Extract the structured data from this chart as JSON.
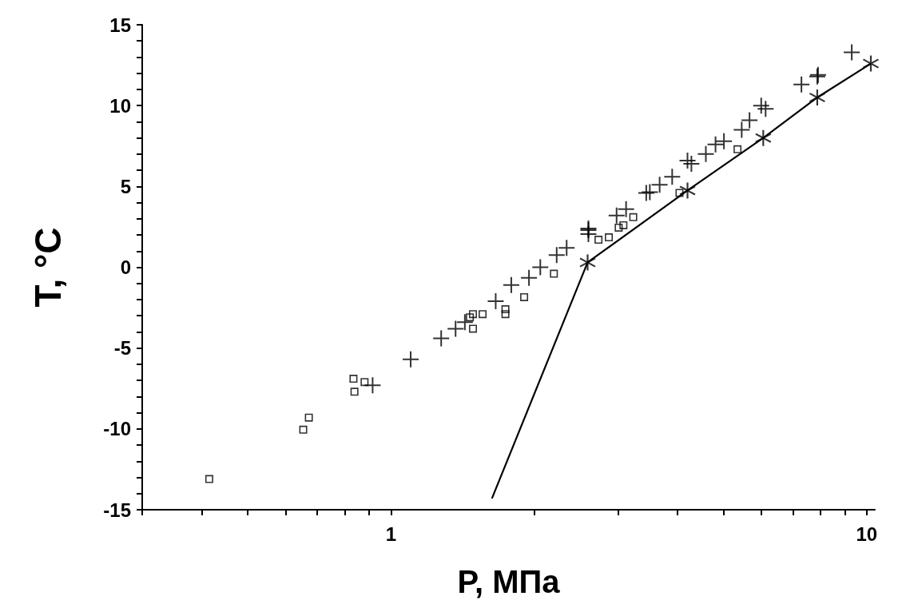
{
  "chart_data": {
    "type": "scatter",
    "xlabel": "P, МПа",
    "ylabel": "T, °C",
    "log": "x",
    "grid": false,
    "xlim": [
      0.3,
      10.4
    ],
    "xticks": [
      {
        "value": 0.3,
        "label": null
      },
      {
        "value": 0.4,
        "label": null
      },
      {
        "value": 0.5,
        "label": null
      },
      {
        "value": 0.6,
        "label": null
      },
      {
        "value": 0.7,
        "label": null
      },
      {
        "value": 0.8,
        "label": null
      },
      {
        "value": 0.9,
        "label": null
      },
      1,
      {
        "value": 2,
        "label": null
      },
      {
        "value": 3,
        "label": null
      },
      {
        "value": 4,
        "label": null
      },
      {
        "value": 5,
        "label": null
      },
      {
        "value": 6,
        "label": null
      },
      {
        "value": 7,
        "label": null
      },
      {
        "value": 8,
        "label": null
      },
      {
        "value": 9,
        "label": null
      },
      10
    ],
    "ylim": [
      -15,
      15
    ],
    "yticks": [
      -15,
      {
        "value": -14,
        "label": null
      },
      {
        "value": -13,
        "label": null
      },
      {
        "value": -12,
        "label": null
      },
      {
        "value": -11,
        "label": null
      },
      -10,
      {
        "value": -9,
        "label": null
      },
      {
        "value": -8,
        "label": null
      },
      {
        "value": -7,
        "label": null
      },
      {
        "value": -6,
        "label": null
      },
      -5,
      {
        "value": -4,
        "label": null
      },
      {
        "value": -3,
        "label": null
      },
      {
        "value": -2,
        "label": null
      },
      {
        "value": -1,
        "label": null
      },
      0,
      {
        "value": 1,
        "label": null
      },
      {
        "value": 2,
        "label": null
      },
      {
        "value": 3,
        "label": null
      },
      {
        "value": 4,
        "label": null
      },
      5,
      {
        "value": 6,
        "label": null
      },
      {
        "value": 7,
        "label": null
      },
      {
        "value": 8,
        "label": null
      },
      {
        "value": 9,
        "label": null
      },
      10,
      {
        "value": 11,
        "label": null
      },
      {
        "value": 12,
        "label": null
      },
      {
        "value": 13,
        "label": null
      },
      {
        "value": 14,
        "label": null
      },
      15
    ],
    "series": [
      {
        "marker": "square",
        "color": "#000000",
        "x": [
          0.415,
          0.654,
          0.672,
          0.834,
          0.838,
          0.88,
          1.465,
          1.487,
          1.487,
          1.558,
          1.74,
          1.74,
          1.905,
          2.2,
          2.73,
          2.87,
          3.01,
          3.08,
          3.23,
          4.04,
          5.35
        ],
        "values": [
          -13.1,
          -10.05,
          -9.3,
          -6.9,
          -7.7,
          -7.1,
          -3.1,
          -2.9,
          -3.8,
          -2.9,
          -2.6,
          -2.9,
          -1.85,
          -0.4,
          1.7,
          1.85,
          2.45,
          2.6,
          3.1,
          4.6,
          7.3
        ]
      },
      {
        "marker": "cross",
        "color": "#000000",
        "x": [
          0.915,
          1.1,
          1.275,
          1.367,
          1.43,
          1.66,
          1.79,
          1.95,
          2.06,
          2.23,
          2.34,
          2.6,
          2.6,
          2.98,
          3.12,
          3.44,
          3.5,
          3.67,
          3.9,
          4.28,
          4.59,
          4.81,
          5.01,
          5.46,
          5.67,
          6.13,
          7.29,
          7.87
        ],
        "values": [
          -7.3,
          -5.7,
          -4.4,
          -3.8,
          -3.4,
          -2.1,
          -1.1,
          -0.65,
          0.0,
          0.75,
          1.2,
          2.05,
          2.4,
          3.2,
          3.6,
          4.6,
          4.65,
          5.1,
          5.6,
          6.4,
          7.0,
          7.6,
          7.8,
          8.5,
          9.1,
          9.8,
          11.3,
          11.8
        ]
      },
      {
        "marker": "cross",
        "color": "#000000",
        "x": [
          2.6,
          4.2,
          6.0,
          7.9,
          9.3
        ],
        "values": [
          2.3,
          6.6,
          10.0,
          11.9,
          13.3
        ]
      },
      {
        "marker": "star",
        "color": "#000000",
        "x": [
          2.59,
          4.2,
          6.06,
          7.87,
          10.2
        ],
        "values": [
          0.3,
          4.75,
          8.0,
          10.5,
          12.6
        ]
      },
      {
        "type": "line",
        "marker": "none",
        "line_style": "solid",
        "color": "#000000",
        "x": [
          1.63,
          2.59,
          4.2,
          6.06,
          7.87,
          10.2
        ],
        "values": [
          -14.3,
          0.3,
          4.75,
          8.0,
          10.5,
          12.6
        ]
      }
    ]
  }
}
